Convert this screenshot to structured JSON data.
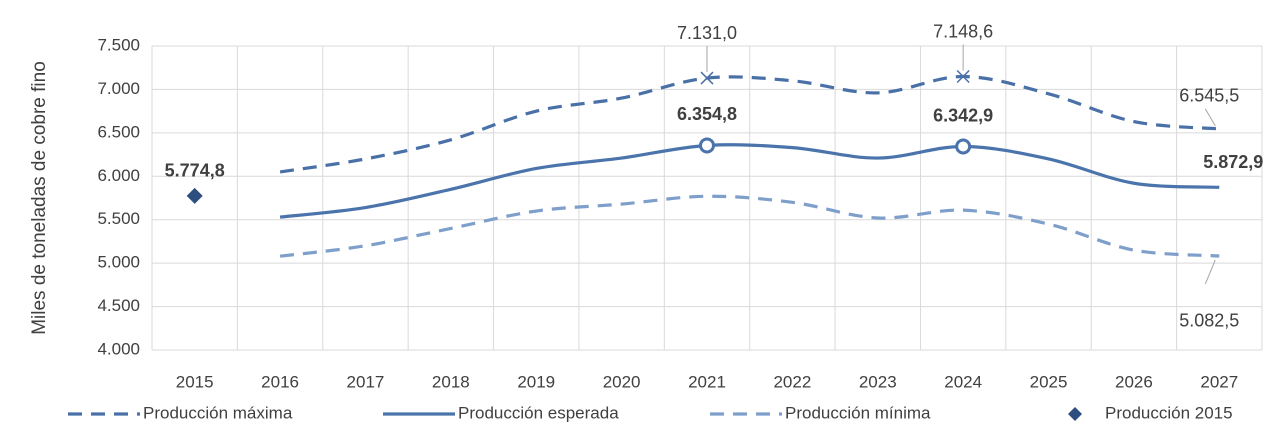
{
  "chart_data": {
    "type": "line",
    "y_axis_label": "Miles de toneladas de cobre fino",
    "categories": [
      "2015",
      "2016",
      "2017",
      "2018",
      "2019",
      "2020",
      "2021",
      "2022",
      "2023",
      "2024",
      "2025",
      "2026",
      "2027"
    ],
    "ylim": [
      4000,
      7500
    ],
    "yticks": [
      {
        "value": 4000,
        "label": "4.000"
      },
      {
        "value": 4500,
        "label": "4.500"
      },
      {
        "value": 5000,
        "label": "5.000"
      },
      {
        "value": 5500,
        "label": "5.500"
      },
      {
        "value": 6000,
        "label": "6.000"
      },
      {
        "value": 6500,
        "label": "6.500"
      },
      {
        "value": 7000,
        "label": "7.000"
      },
      {
        "value": 7500,
        "label": "7.500"
      }
    ],
    "grid": true,
    "legend": "bottom",
    "series": [
      {
        "name": "Producción máxima",
        "color": "#4a70a8",
        "style": "dashed",
        "values": [
          null,
          6050,
          6200,
          6420,
          6750,
          6900,
          7131.0,
          7100,
          6960,
          7148.6,
          6950,
          6630,
          6545.5
        ],
        "value_labels": [
          null,
          null,
          null,
          null,
          null,
          null,
          "7.131,0",
          null,
          null,
          "7.148,6",
          null,
          null,
          "6.545,5"
        ]
      },
      {
        "name": "Producción esperada",
        "color": "#4a74ab",
        "style": "solid",
        "values": [
          null,
          5530,
          5640,
          5850,
          6090,
          6210,
          6354.8,
          6330,
          6210,
          6342.9,
          6200,
          5920,
          5872.9
        ],
        "value_labels": [
          null,
          null,
          null,
          null,
          null,
          null,
          "6.354,8",
          null,
          null,
          "6.342,9",
          null,
          null,
          "5.872,9"
        ]
      },
      {
        "name": "Producción mínima",
        "color": "#7f9fcb",
        "style": "dashed",
        "values": [
          null,
          5080,
          5200,
          5400,
          5600,
          5680,
          5770,
          5700,
          5520,
          5610,
          5450,
          5150,
          5082.5
        ],
        "value_labels": [
          null,
          null,
          null,
          null,
          null,
          null,
          null,
          null,
          null,
          null,
          null,
          null,
          "5.082,5"
        ]
      },
      {
        "name": "Producción 2015",
        "color": "#2e4e80",
        "style": "marker",
        "values": [
          5774.8,
          null,
          null,
          null,
          null,
          null,
          null,
          null,
          null,
          null,
          null,
          null,
          null
        ],
        "value_labels": [
          "5.774,8",
          null,
          null,
          null,
          null,
          null,
          null,
          null,
          null,
          null,
          null,
          null,
          null
        ]
      }
    ]
  }
}
